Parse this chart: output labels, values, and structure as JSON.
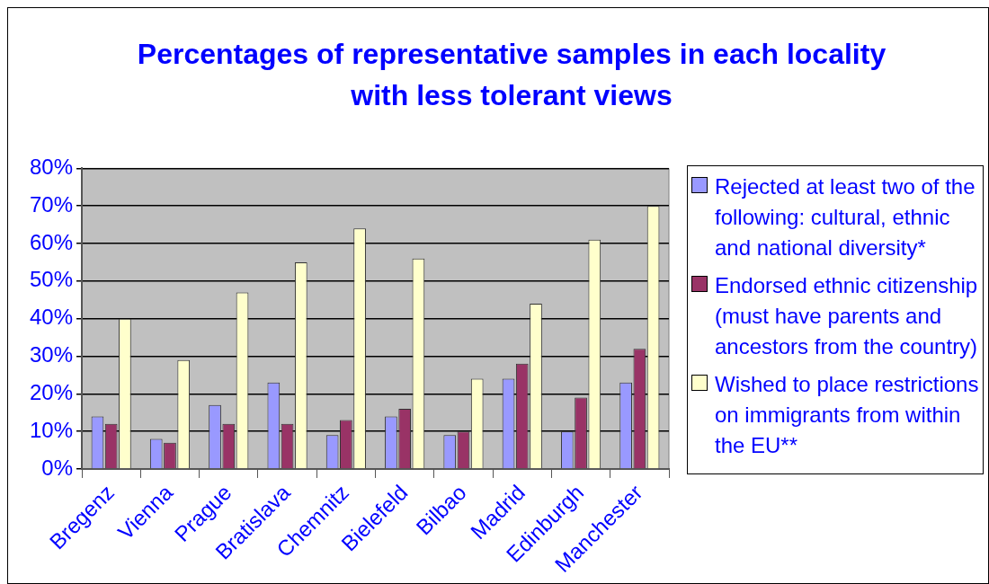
{
  "chart_data": {
    "type": "bar",
    "title": "Percentages of representative samples in each locality with less tolerant views",
    "categories": [
      "Bregenz",
      "Vienna",
      "Prague",
      "Bratislava",
      "Chemnitz",
      "Bielefeld",
      "Bilbao",
      "Madrid",
      "Edinburgh",
      "Manchester"
    ],
    "series": [
      {
        "name": "Rejected at least two of the following:  cultural, ethnic and national diversity*",
        "color": "#9999ff",
        "values": [
          14,
          8,
          17,
          23,
          9,
          14,
          9,
          24,
          10,
          23
        ]
      },
      {
        "name": "Endorsed ethnic citizenship (must have parents and ancestors from the country)",
        "color": "#993366",
        "values": [
          12,
          7,
          12,
          12,
          13,
          16,
          10,
          28,
          19,
          32
        ]
      },
      {
        "name": "Wished to place restrictions on immigrants from within the EU**",
        "color": "#ffffcc",
        "values": [
          40,
          29,
          47,
          55,
          64,
          56,
          24,
          44,
          61,
          70
        ]
      }
    ],
    "ylim": [
      0,
      80
    ],
    "yticks": [
      {
        "value": 0,
        "label": "0%"
      },
      {
        "value": 10,
        "label": "10%"
      },
      {
        "value": 20,
        "label": "20%"
      },
      {
        "value": 30,
        "label": "30%"
      },
      {
        "value": 40,
        "label": "40%"
      },
      {
        "value": 50,
        "label": "50%"
      },
      {
        "value": 60,
        "label": "60%"
      },
      {
        "value": 70,
        "label": "70%"
      },
      {
        "value": 80,
        "label": "80%"
      }
    ],
    "grid": "y",
    "legend": "right"
  }
}
